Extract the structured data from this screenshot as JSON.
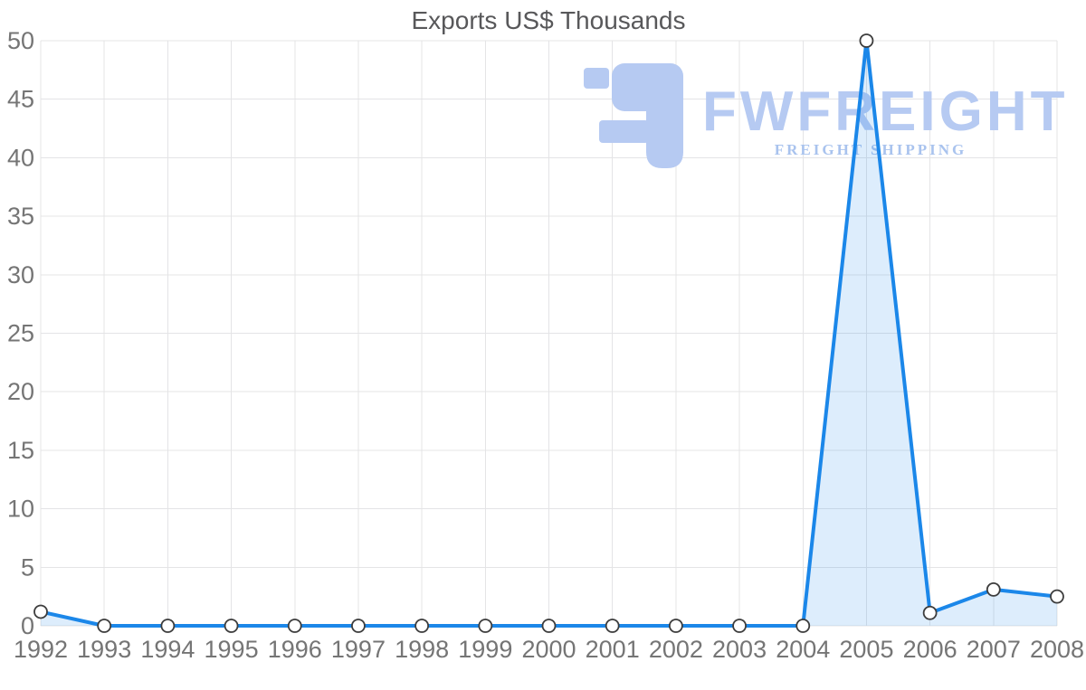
{
  "title": "Exports US$ Thousands",
  "watermark": {
    "brand": "FWFREIGHT",
    "tagline": "FREIGHT SHIPPING",
    "logo": "fwfreight-logo"
  },
  "chart_data": {
    "type": "area",
    "title": "Exports US$ Thousands",
    "x": [
      1992,
      1993,
      1994,
      1995,
      1996,
      1997,
      1998,
      1999,
      2000,
      2001,
      2002,
      2003,
      2004,
      2005,
      2006,
      2007,
      2008
    ],
    "values": [
      1.2,
      0,
      0,
      0,
      0,
      0,
      0,
      0,
      0,
      0,
      0,
      0,
      0,
      50,
      1.1,
      3.1,
      2.5
    ],
    "series_name": "Exports US$ Thousands",
    "xlabel": "",
    "ylabel": "",
    "ylim": [
      0,
      50
    ],
    "yticks": [
      0,
      5,
      10,
      15,
      20,
      25,
      30,
      35,
      40,
      45,
      50
    ],
    "grid": true,
    "legend": "none",
    "colors": {
      "line": "#1b87e9",
      "area_fill": "rgba(27,135,233,0.15)",
      "marker_fill": "#ffffff",
      "marker_stroke": "#3d3d3d",
      "grid": "#e4e4e6",
      "tick_text": "#757575",
      "title_text": "#58585a",
      "watermark": "#b6caf2",
      "watermark_tagline": "#a9c3ee",
      "background": "#ffffff"
    }
  }
}
